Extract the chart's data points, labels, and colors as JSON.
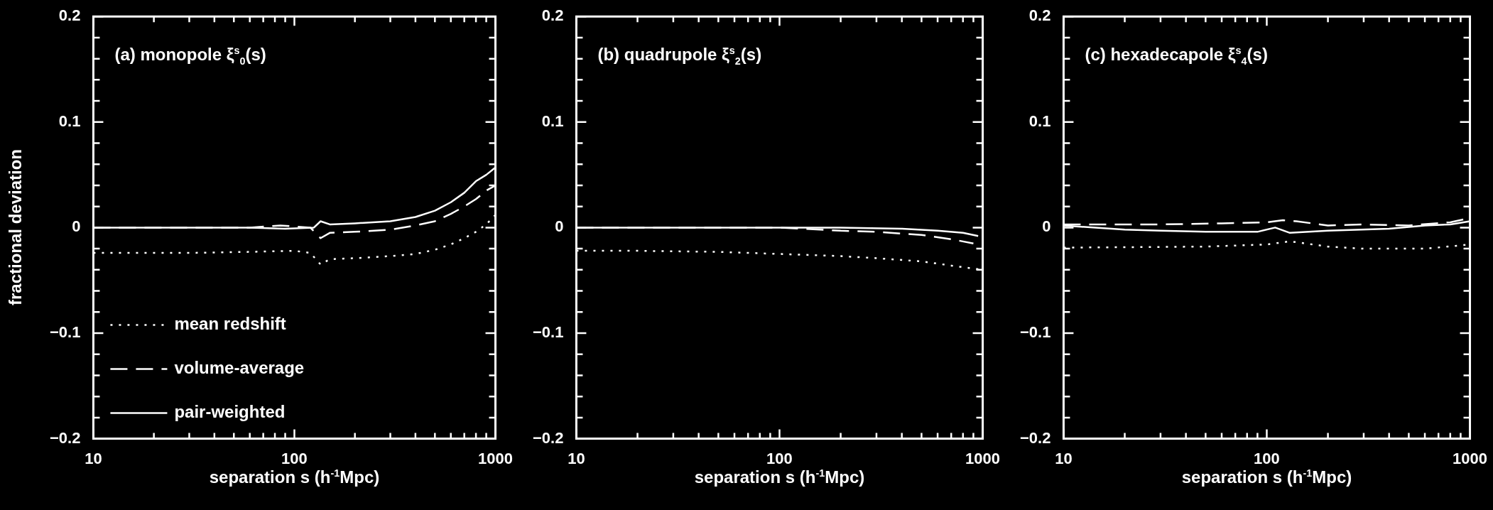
{
  "chart_data": [
    {
      "type": "line",
      "title": "(a) monopole ξ$^{s}$$_{0}$(s)",
      "xlabel": "separation s (h$^{-1}$Mpc)",
      "ylabel": "fractional deviation",
      "log": "x",
      "legend": "bottom left",
      "grid": false,
      "marker": "none",
      "xlim": [
        10,
        1000
      ],
      "ylim": [
        -0.2,
        0.2
      ],
      "xticks": [
        10,
        {
          "value": 20,
          "label": null
        },
        {
          "value": 30,
          "label": null
        },
        {
          "value": 40,
          "label": null
        },
        {
          "value": 50,
          "label": null
        },
        {
          "value": 60,
          "label": null
        },
        {
          "value": 70,
          "label": null
        },
        {
          "value": 80,
          "label": null
        },
        {
          "value": 90,
          "label": null
        },
        100,
        {
          "value": 200,
          "label": null
        },
        {
          "value": 300,
          "label": null
        },
        {
          "value": 400,
          "label": null
        },
        {
          "value": 500,
          "label": null
        },
        {
          "value": 600,
          "label": null
        },
        {
          "value": 700,
          "label": null
        },
        {
          "value": 800,
          "label": null
        },
        {
          "value": 900,
          "label": null
        },
        1000
      ],
      "yticks": [
        {
          "value": -0.2,
          "label": "−0.2"
        },
        {
          "value": -0.18,
          "label": null
        },
        {
          "value": -0.16,
          "label": null
        },
        {
          "value": -0.14,
          "label": null
        },
        {
          "value": -0.12,
          "label": null
        },
        {
          "value": -0.1,
          "label": "−0.1"
        },
        {
          "value": -0.08,
          "label": null
        },
        {
          "value": -0.06,
          "label": null
        },
        {
          "value": -0.04,
          "label": null
        },
        {
          "value": -0.02,
          "label": null
        },
        0,
        {
          "value": 0.02,
          "label": null
        },
        {
          "value": 0.04,
          "label": null
        },
        {
          "value": 0.06,
          "label": null
        },
        {
          "value": 0.08,
          "label": null
        },
        0.1,
        {
          "value": 0.12,
          "label": null
        },
        {
          "value": 0.14,
          "label": null
        },
        {
          "value": 0.16,
          "label": null
        },
        {
          "value": 0.18,
          "label": null
        },
        0.2
      ],
      "series": [
        {
          "name": "mean redshift",
          "color": "#ffffff",
          "line_style": "dotted",
          "x": [
            10,
            30,
            60,
            100,
            120,
            135,
            150,
            200,
            300,
            400,
            500,
            600,
            700,
            800,
            900,
            1000
          ],
          "values": [
            -0.024,
            -0.024,
            -0.023,
            -0.022,
            -0.024,
            -0.035,
            -0.03,
            -0.029,
            -0.027,
            -0.025,
            -0.021,
            -0.016,
            -0.01,
            -0.004,
            0.003,
            0.012
          ]
        },
        {
          "name": "volume-average",
          "color": "#ffffff",
          "line_style": "dashed",
          "x": [
            10,
            30,
            60,
            85,
            120,
            135,
            150,
            200,
            300,
            400,
            500,
            600,
            700,
            800,
            900,
            1000
          ],
          "values": [
            0,
            0,
            0,
            0.002,
            0,
            -0.01,
            -0.005,
            -0.004,
            -0.002,
            0.002,
            0.006,
            0.013,
            0.02,
            0.027,
            0.035,
            0.04
          ]
        },
        {
          "name": "pair-weighted",
          "color": "#ffffff",
          "line_style": "solid",
          "x": [
            10,
            30,
            60,
            90,
            125,
            135,
            150,
            200,
            300,
            400,
            500,
            600,
            700,
            800,
            900,
            1000
          ],
          "values": [
            0,
            0,
            0,
            -0.001,
            0,
            0.006,
            0.003,
            0.004,
            0.006,
            0.01,
            0.016,
            0.024,
            0.033,
            0.044,
            0.05,
            0.057
          ]
        }
      ]
    },
    {
      "type": "line",
      "title": "(b) quadrupole ξ$^{s}$$_{2}$(s)",
      "xlabel": "separation s (h$^{-1}$Mpc)",
      "log": "x",
      "legend": false,
      "grid": false,
      "marker": "none",
      "xlim": [
        10,
        1000
      ],
      "ylim": [
        -0.2,
        0.2
      ],
      "xticks": [
        10,
        {
          "value": 20,
          "label": null
        },
        {
          "value": 30,
          "label": null
        },
        {
          "value": 40,
          "label": null
        },
        {
          "value": 50,
          "label": null
        },
        {
          "value": 60,
          "label": null
        },
        {
          "value": 70,
          "label": null
        },
        {
          "value": 80,
          "label": null
        },
        {
          "value": 90,
          "label": null
        },
        100,
        {
          "value": 200,
          "label": null
        },
        {
          "value": 300,
          "label": null
        },
        {
          "value": 400,
          "label": null
        },
        {
          "value": 500,
          "label": null
        },
        {
          "value": 600,
          "label": null
        },
        {
          "value": 700,
          "label": null
        },
        {
          "value": 800,
          "label": null
        },
        {
          "value": 900,
          "label": null
        },
        1000
      ],
      "yticks": [
        {
          "value": -0.2,
          "label": "−0.2"
        },
        {
          "value": -0.18,
          "label": null
        },
        {
          "value": -0.16,
          "label": null
        },
        {
          "value": -0.14,
          "label": null
        },
        {
          "value": -0.12,
          "label": null
        },
        {
          "value": -0.1,
          "label": "−0.1"
        },
        {
          "value": -0.08,
          "label": null
        },
        {
          "value": -0.06,
          "label": null
        },
        {
          "value": -0.04,
          "label": null
        },
        {
          "value": -0.02,
          "label": null
        },
        0,
        {
          "value": 0.02,
          "label": null
        },
        {
          "value": 0.04,
          "label": null
        },
        {
          "value": 0.06,
          "label": null
        },
        {
          "value": 0.08,
          "label": null
        },
        0.1,
        {
          "value": 0.12,
          "label": null
        },
        {
          "value": 0.14,
          "label": null
        },
        {
          "value": 0.16,
          "label": null
        },
        {
          "value": 0.18,
          "label": null
        },
        0.2
      ],
      "series": [
        {
          "color": "#ffffff",
          "line_style": "dotted",
          "x": [
            10,
            20,
            50,
            100,
            200,
            300,
            500,
            700,
            1000
          ],
          "values": [
            -0.022,
            -0.022,
            -0.023,
            -0.025,
            -0.027,
            -0.029,
            -0.032,
            -0.036,
            -0.04
          ]
        },
        {
          "color": "#ffffff",
          "line_style": "dashed",
          "x": [
            10,
            50,
            100,
            200,
            300,
            500,
            700,
            900
          ],
          "values": [
            0,
            0,
            0,
            -0.003,
            -0.004,
            -0.007,
            -0.011,
            -0.015
          ]
        },
        {
          "color": "#ffffff",
          "line_style": "solid",
          "x": [
            10,
            50,
            100,
            200,
            400,
            600,
            800,
            950
          ],
          "values": [
            0,
            0,
            0,
            0,
            -0.001,
            -0.003,
            -0.005,
            -0.008
          ]
        }
      ]
    },
    {
      "type": "line",
      "title": "(c) hexadecapole ξ$^{s}$$_{4}$(s)",
      "xlabel": "separation s (h$^{-1}$Mpc)",
      "log": "x",
      "legend": false,
      "grid": false,
      "marker": "none",
      "xlim": [
        10,
        1000
      ],
      "ylim": [
        -0.2,
        0.2
      ],
      "xticks": [
        10,
        {
          "value": 20,
          "label": null
        },
        {
          "value": 30,
          "label": null
        },
        {
          "value": 40,
          "label": null
        },
        {
          "value": 50,
          "label": null
        },
        {
          "value": 60,
          "label": null
        },
        {
          "value": 70,
          "label": null
        },
        {
          "value": 80,
          "label": null
        },
        {
          "value": 90,
          "label": null
        },
        100,
        {
          "value": 200,
          "label": null
        },
        {
          "value": 300,
          "label": null
        },
        {
          "value": 400,
          "label": null
        },
        {
          "value": 500,
          "label": null
        },
        {
          "value": 600,
          "label": null
        },
        {
          "value": 700,
          "label": null
        },
        {
          "value": 800,
          "label": null
        },
        {
          "value": 900,
          "label": null
        },
        1000
      ],
      "yticks": [
        {
          "value": -0.2,
          "label": "−0.2"
        },
        {
          "value": -0.18,
          "label": null
        },
        {
          "value": -0.16,
          "label": null
        },
        {
          "value": -0.14,
          "label": null
        },
        {
          "value": -0.12,
          "label": null
        },
        {
          "value": -0.1,
          "label": "−0.1"
        },
        {
          "value": -0.08,
          "label": null
        },
        {
          "value": -0.06,
          "label": null
        },
        {
          "value": -0.04,
          "label": null
        },
        {
          "value": -0.02,
          "label": null
        },
        0,
        {
          "value": 0.02,
          "label": null
        },
        {
          "value": 0.04,
          "label": null
        },
        {
          "value": 0.06,
          "label": null
        },
        {
          "value": 0.08,
          "label": null
        },
        0.1,
        {
          "value": 0.12,
          "label": null
        },
        {
          "value": 0.14,
          "label": null
        },
        {
          "value": 0.16,
          "label": null
        },
        {
          "value": 0.18,
          "label": null
        },
        0.2
      ],
      "series": [
        {
          "color": "#ffffff",
          "line_style": "dotted",
          "x": [
            10,
            50,
            100,
            130,
            200,
            300,
            600,
            1000
          ],
          "values": [
            -0.019,
            -0.018,
            -0.016,
            -0.013,
            -0.018,
            -0.02,
            -0.02,
            -0.016
          ]
        },
        {
          "color": "#ffffff",
          "line_style": "dashed",
          "x": [
            10,
            30,
            60,
            100,
            120,
            140,
            200,
            300,
            500,
            800,
            1000
          ],
          "values": [
            0.003,
            0.003,
            0.004,
            0.005,
            0.007,
            0.006,
            0.002,
            0.003,
            0.002,
            0.005,
            0.009
          ]
        },
        {
          "color": "#ffffff",
          "line_style": "solid",
          "x": [
            10,
            20,
            30,
            50,
            90,
            110,
            130,
            200,
            400,
            600,
            800,
            1000
          ],
          "values": [
            0.002,
            -0.002,
            -0.003,
            -0.004,
            -0.004,
            0,
            -0.005,
            -0.003,
            -0.001,
            0.002,
            0.003,
            0.006
          ]
        }
      ]
    }
  ]
}
